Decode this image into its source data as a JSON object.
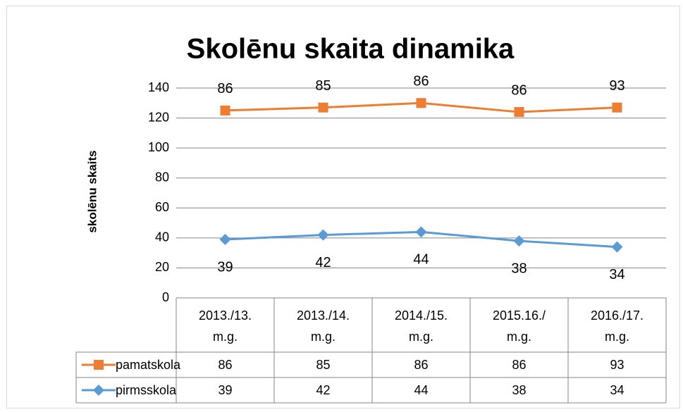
{
  "chart_data": {
    "type": "line",
    "stacked": true,
    "title": "Skolēnu skaita dinamika",
    "y_label": "skolēnu skaits",
    "categories": [
      "2013./13. m.g.",
      "2013./14. m.g.",
      "2014./15. m.g.",
      "2015.16./ m.g.",
      "2016./17. m.g."
    ],
    "series": [
      {
        "name": "pamatskola",
        "color": "#ED7D31",
        "marker": "square",
        "values": [
          86,
          85,
          86,
          86,
          93
        ]
      },
      {
        "name": "pirmsskola",
        "color": "#5B9BD5",
        "marker": "diamond",
        "values": [
          39,
          42,
          44,
          38,
          34
        ]
      }
    ],
    "ylim": [
      0,
      140
    ],
    "yticks": [
      0,
      20,
      40,
      60,
      80,
      100,
      120,
      140
    ],
    "grid": true,
    "data_table": true
  }
}
